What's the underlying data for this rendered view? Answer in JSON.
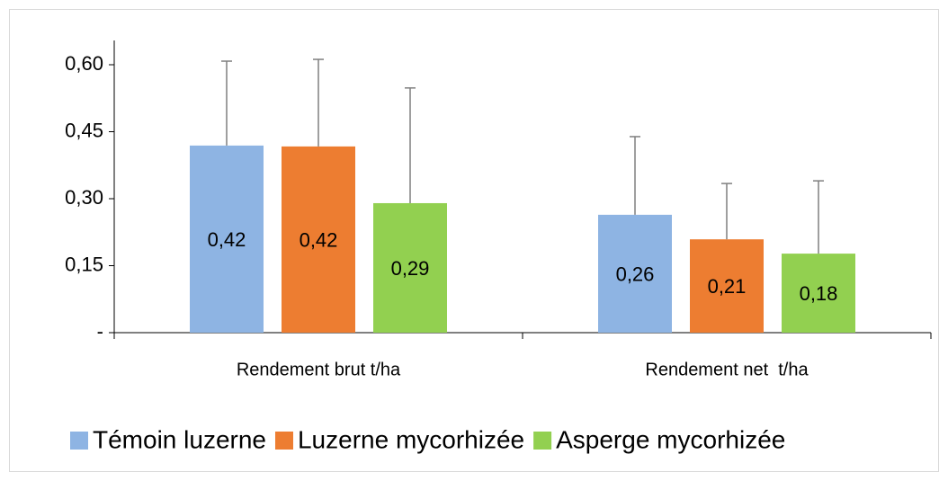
{
  "chart_data": {
    "type": "bar",
    "categories": [
      "Rendement brut t/ha",
      "Rendement net  t/ha"
    ],
    "series": [
      {
        "name": "Témoin luzerne",
        "color": "#8eb4e3",
        "values": [
          0.419,
          0.264
        ],
        "value_labels": [
          "0,42",
          "0,26"
        ],
        "errors": [
          0.189,
          0.175
        ]
      },
      {
        "name": "Luzerne mycorhizée",
        "color": "#ed7d31",
        "values": [
          0.417,
          0.209
        ],
        "value_labels": [
          "0,42",
          "0,21"
        ],
        "errors": [
          0.195,
          0.125
        ]
      },
      {
        "name": "Asperge mycorhizée",
        "color": "#92d050",
        "values": [
          0.29,
          0.177
        ],
        "value_labels": [
          "0,29",
          "0,18"
        ],
        "errors": [
          0.258,
          0.163
        ]
      }
    ],
    "ylim": [
      0,
      0.6
    ],
    "yticks": [
      {
        "value": 0,
        "label": "-"
      },
      {
        "value": 0.15,
        "label": "0,15"
      },
      {
        "value": 0.3,
        "label": "0,30"
      },
      {
        "value": 0.45,
        "label": "0,45"
      },
      {
        "value": 0.6,
        "label": "0,60"
      }
    ],
    "legend": "bottom"
  }
}
